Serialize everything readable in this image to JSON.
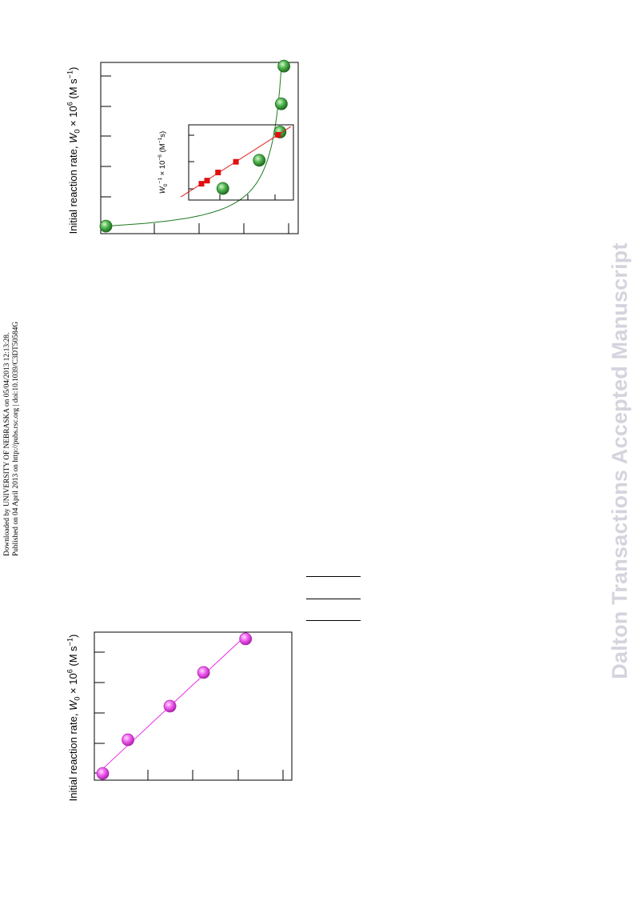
{
  "header_note": {
    "line1": "Downloaded by UNIVERSITY OF NEBRASKA on 05/04/2013 12:13:28.",
    "line2": "Published on 04 April 2013 on http://pubs.rsc.org | doi:10.1039/C3DT50584G"
  },
  "watermark": "Dalton Transactions Accepted Manuscript",
  "colors": {
    "green_marker": "#3aa53a",
    "green_line": "#1e7a1e",
    "red_marker": "#e01010",
    "magenta_marker": "#f25ef2",
    "magenta_line": "#e82be8",
    "watermark": "#d4d4de"
  },
  "chart_data": [
    {
      "type": "scatter",
      "orientation": "rotated 90 degrees counter-clockwise",
      "ylabel_prefix": "Initial reaction rate, ",
      "ylabel_symbol": "W",
      "ylabel_sub": "0",
      "ylabel_mid": " × 10",
      "ylabel_sup": "6",
      "ylabel_unit_open": "  (M s",
      "ylabel_unit_sup": "−1",
      "ylabel_unit_close": ")",
      "xlabel": "",
      "x": [
        0.0,
        0.2,
        0.35,
        0.5,
        0.65,
        0.85
      ],
      "y": [
        0.1,
        4.6,
        6.0,
        6.8,
        6.85,
        6.95
      ],
      "xlim": [
        -0.04,
        0.87
      ],
      "ylim": [
        -0.1,
        7.5
      ],
      "fit": "saturation curve",
      "series": [
        {
          "values": [
            0.1,
            4.6,
            6.0,
            6.8,
            6.85,
            6.95
          ]
        }
      ],
      "marker": "green sphere",
      "inset": {
        "type": "line",
        "ylabel_symbol": "W",
        "ylabel_sub": "0",
        "ylabel_sup1": "−1",
        "ylabel_mid": " × 10",
        "ylabel_sup2": "−6",
        "ylabel_unit_open": "  (M",
        "ylabel_unit_sup": "−1",
        "ylabel_unit_close": "s)",
        "x": [
          1.3,
          1.55,
          2.2,
          3.05,
          5.2
        ],
        "y": [
          0.2,
          0.42,
          0.85,
          1.55,
          3.2
        ],
        "xlim": [
          0,
          6.0
        ],
        "ylim": [
          -0.3,
          3.8
        ],
        "marker": "red square"
      }
    },
    {
      "type": "scatter",
      "orientation": "rotated 90 degrees counter-clockwise",
      "ylabel_prefix": "Initial reaction rate, ",
      "ylabel_symbol": "W",
      "ylabel_sub": "0",
      "ylabel_mid": " × 10",
      "ylabel_sup": "6",
      "ylabel_unit_open": "  (M s",
      "ylabel_unit_sup": "−1",
      "ylabel_unit_close": ")",
      "xlabel": "",
      "x": [
        0.0,
        0.1,
        0.2,
        0.3,
        0.4
      ],
      "y": [
        0.1,
        0.7,
        1.7,
        2.5,
        3.5
      ],
      "xlim": [
        -0.02,
        0.42
      ],
      "ylim": [
        -0.1,
        4.6
      ],
      "fit": "linear",
      "series": [
        {
          "values": [
            0.1,
            0.7,
            1.7,
            2.5,
            3.5
          ]
        }
      ],
      "marker": "magenta sphere"
    }
  ]
}
